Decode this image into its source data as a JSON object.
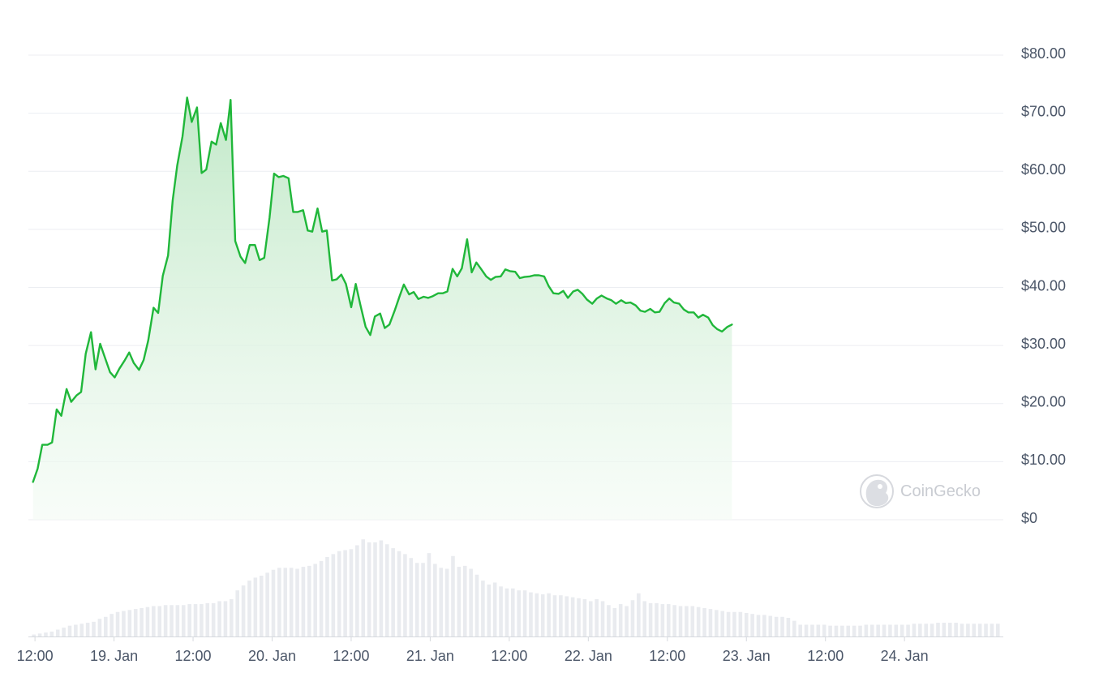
{
  "chart_data": {
    "type": "area",
    "title": "",
    "xlabel": "",
    "ylabel": "",
    "ylim": [
      0,
      80
    ],
    "y_ticks": [
      {
        "value": 80,
        "label": "$80.00"
      },
      {
        "value": 70,
        "label": "$70.00"
      },
      {
        "value": 60,
        "label": "$60.00"
      },
      {
        "value": 50,
        "label": "$50.00"
      },
      {
        "value": 40,
        "label": "$40.00"
      },
      {
        "value": 30,
        "label": "$30.00"
      },
      {
        "value": 20,
        "label": "$20.00"
      },
      {
        "value": 10,
        "label": "$10.00"
      },
      {
        "value": 0,
        "label": "$0"
      }
    ],
    "x_range_hours": [
      -1,
      147
    ],
    "x_ticks": [
      {
        "hour": 0,
        "label": "12:00"
      },
      {
        "hour": 12,
        "label": "19. Jan"
      },
      {
        "hour": 24,
        "label": "12:00"
      },
      {
        "hour": 36,
        "label": "20. Jan"
      },
      {
        "hour": 48,
        "label": "12:00"
      },
      {
        "hour": 60,
        "label": "21. Jan"
      },
      {
        "hour": 72,
        "label": "12:00"
      },
      {
        "hour": 84,
        "label": "22. Jan"
      },
      {
        "hour": 96,
        "label": "12:00"
      },
      {
        "hour": 108,
        "label": "23. Jan"
      },
      {
        "hour": 120,
        "label": "12:00"
      },
      {
        "hour": 132,
        "label": "24. Jan"
      }
    ],
    "series": [
      {
        "values": [
          [
            -0.3,
            6.5
          ],
          [
            0.4,
            8.8
          ],
          [
            1.1,
            12.9
          ],
          [
            1.9,
            12.9
          ],
          [
            2.6,
            13.3
          ],
          [
            3.3,
            19.0
          ],
          [
            4.0,
            17.9
          ],
          [
            4.8,
            22.5
          ],
          [
            5.5,
            20.3
          ],
          [
            6.3,
            21.4
          ],
          [
            7.0,
            22.0
          ],
          [
            7.7,
            28.6
          ],
          [
            8.5,
            32.3
          ],
          [
            9.2,
            25.9
          ],
          [
            9.9,
            30.3
          ],
          [
            10.6,
            28.0
          ],
          [
            11.4,
            25.4
          ],
          [
            12.1,
            24.5
          ],
          [
            12.8,
            26.0
          ],
          [
            13.6,
            27.4
          ],
          [
            14.3,
            28.8
          ],
          [
            15.0,
            27.0
          ],
          [
            15.8,
            25.8
          ],
          [
            16.5,
            27.5
          ],
          [
            17.2,
            30.9
          ],
          [
            18.0,
            36.5
          ],
          [
            18.7,
            35.6
          ],
          [
            19.4,
            42.0
          ],
          [
            20.2,
            45.5
          ],
          [
            20.9,
            55.0
          ],
          [
            21.6,
            61.0
          ],
          [
            22.4,
            66.0
          ],
          [
            23.1,
            72.7
          ],
          [
            23.8,
            68.5
          ],
          [
            24.6,
            71.0
          ],
          [
            25.3,
            59.7
          ],
          [
            26.0,
            60.3
          ],
          [
            26.8,
            65.1
          ],
          [
            27.5,
            64.6
          ],
          [
            28.2,
            68.3
          ],
          [
            29.0,
            65.4
          ],
          [
            29.7,
            72.3
          ],
          [
            30.4,
            48.0
          ],
          [
            31.2,
            45.3
          ],
          [
            31.9,
            44.2
          ],
          [
            32.6,
            47.3
          ],
          [
            33.4,
            47.3
          ],
          [
            34.1,
            44.7
          ],
          [
            34.8,
            45.1
          ],
          [
            35.6,
            52.0
          ],
          [
            36.3,
            59.6
          ],
          [
            37.0,
            59.0
          ],
          [
            37.7,
            59.2
          ],
          [
            38.5,
            58.8
          ],
          [
            39.2,
            53.0
          ],
          [
            39.9,
            53.0
          ],
          [
            40.7,
            53.3
          ],
          [
            41.4,
            49.8
          ],
          [
            42.1,
            49.6
          ],
          [
            42.9,
            53.6
          ],
          [
            43.6,
            49.6
          ],
          [
            44.3,
            49.8
          ],
          [
            45.1,
            41.2
          ],
          [
            45.8,
            41.4
          ],
          [
            46.5,
            42.2
          ],
          [
            47.2,
            40.6
          ],
          [
            48.0,
            36.6
          ],
          [
            48.7,
            40.6
          ],
          [
            49.4,
            37.0
          ],
          [
            50.2,
            33.2
          ],
          [
            50.9,
            31.8
          ],
          [
            51.6,
            35.0
          ],
          [
            52.4,
            35.5
          ],
          [
            53.1,
            33.0
          ],
          [
            53.8,
            33.6
          ],
          [
            54.6,
            36.0
          ],
          [
            55.3,
            38.3
          ],
          [
            56.0,
            40.5
          ],
          [
            56.8,
            38.8
          ],
          [
            57.5,
            39.2
          ],
          [
            58.2,
            38.0
          ],
          [
            59.0,
            38.4
          ],
          [
            59.7,
            38.2
          ],
          [
            60.4,
            38.5
          ],
          [
            61.2,
            39.0
          ],
          [
            61.9,
            39.0
          ],
          [
            62.6,
            39.3
          ],
          [
            63.4,
            43.2
          ],
          [
            64.1,
            41.9
          ],
          [
            64.8,
            43.3
          ],
          [
            65.6,
            48.3
          ],
          [
            66.3,
            42.6
          ],
          [
            67.0,
            44.3
          ],
          [
            67.7,
            43.2
          ],
          [
            68.5,
            41.9
          ],
          [
            69.2,
            41.3
          ],
          [
            69.9,
            41.8
          ],
          [
            70.7,
            41.9
          ],
          [
            71.4,
            43.1
          ],
          [
            72.1,
            42.8
          ],
          [
            72.9,
            42.7
          ],
          [
            73.6,
            41.6
          ],
          [
            74.3,
            41.8
          ],
          [
            75.1,
            41.9
          ],
          [
            75.8,
            42.1
          ],
          [
            76.5,
            42.1
          ],
          [
            77.3,
            41.9
          ],
          [
            78.0,
            40.2
          ],
          [
            78.7,
            39.0
          ],
          [
            79.5,
            38.9
          ],
          [
            80.2,
            39.4
          ],
          [
            80.9,
            38.2
          ],
          [
            81.7,
            39.3
          ],
          [
            82.4,
            39.6
          ],
          [
            83.1,
            38.9
          ],
          [
            83.8,
            37.9
          ],
          [
            84.6,
            37.2
          ],
          [
            85.3,
            38.1
          ],
          [
            86.0,
            38.6
          ],
          [
            86.8,
            38.1
          ],
          [
            87.5,
            37.8
          ],
          [
            88.2,
            37.2
          ],
          [
            89.0,
            37.8
          ],
          [
            89.7,
            37.3
          ],
          [
            90.4,
            37.4
          ],
          [
            91.2,
            36.9
          ],
          [
            91.9,
            36.0
          ],
          [
            92.6,
            35.8
          ],
          [
            93.4,
            36.3
          ],
          [
            94.1,
            35.7
          ],
          [
            94.8,
            35.8
          ],
          [
            95.6,
            37.3
          ],
          [
            96.3,
            38.1
          ],
          [
            97.0,
            37.4
          ],
          [
            97.8,
            37.2
          ],
          [
            98.5,
            36.2
          ],
          [
            99.2,
            35.7
          ],
          [
            100.0,
            35.7
          ],
          [
            100.7,
            34.8
          ],
          [
            101.4,
            35.3
          ],
          [
            102.2,
            34.8
          ],
          [
            102.9,
            33.5
          ],
          [
            103.6,
            32.8
          ],
          [
            104.3,
            32.4
          ],
          [
            105.1,
            33.2
          ],
          [
            105.8,
            33.6
          ]
        ]
      }
    ],
    "volume_series": {
      "values": [
        0.02,
        0.03,
        0.04,
        0.05,
        0.07,
        0.09,
        0.11,
        0.12,
        0.13,
        0.14,
        0.15,
        0.18,
        0.2,
        0.23,
        0.25,
        0.26,
        0.27,
        0.28,
        0.29,
        0.3,
        0.31,
        0.31,
        0.32,
        0.32,
        0.32,
        0.32,
        0.33,
        0.33,
        0.33,
        0.34,
        0.34,
        0.36,
        0.36,
        0.38,
        0.47,
        0.52,
        0.57,
        0.6,
        0.62,
        0.65,
        0.68,
        0.7,
        0.7,
        0.7,
        0.69,
        0.71,
        0.72,
        0.74,
        0.77,
        0.81,
        0.84,
        0.87,
        0.88,
        0.89,
        0.93,
        0.99,
        0.96,
        0.96,
        0.98,
        0.94,
        0.9,
        0.87,
        0.84,
        0.8,
        0.75,
        0.75,
        0.85,
        0.74,
        0.7,
        0.69,
        0.82,
        0.71,
        0.72,
        0.69,
        0.63,
        0.57,
        0.53,
        0.55,
        0.51,
        0.49,
        0.49,
        0.47,
        0.47,
        0.45,
        0.44,
        0.43,
        0.44,
        0.42,
        0.42,
        0.41,
        0.4,
        0.39,
        0.38,
        0.36,
        0.38,
        0.36,
        0.32,
        0.29,
        0.33,
        0.31,
        0.37,
        0.44,
        0.36,
        0.34,
        0.34,
        0.33,
        0.33,
        0.32,
        0.31,
        0.31,
        0.31,
        0.3,
        0.29,
        0.28,
        0.27,
        0.26,
        0.25,
        0.25,
        0.25,
        0.24,
        0.23,
        0.22,
        0.22,
        0.21,
        0.2,
        0.2,
        0.19,
        0.16,
        0.12,
        0.12,
        0.12,
        0.12,
        0.12,
        0.11,
        0.11,
        0.11,
        0.11,
        0.11,
        0.11,
        0.12,
        0.12,
        0.12,
        0.12,
        0.12,
        0.12,
        0.12,
        0.12,
        0.13,
        0.13,
        0.13,
        0.13,
        0.14,
        0.14,
        0.14,
        0.14,
        0.13,
        0.13,
        0.13,
        0.13,
        0.13,
        0.13,
        0.13
      ]
    },
    "grid": true,
    "legend": "none",
    "watermark": "CoinGecko",
    "colors": {
      "line": "#20b73a",
      "area_top": "#bfe8c6",
      "area_bottom": "#f3fbf4",
      "grid": "#eceef2",
      "tick_text": "#4b5668",
      "volume": "#e9ebef",
      "watermark": "#c9ccd2"
    }
  }
}
